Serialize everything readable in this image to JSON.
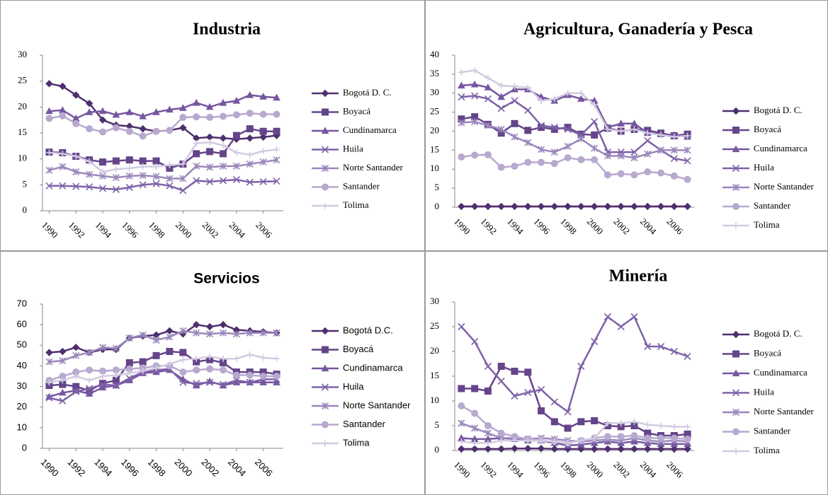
{
  "chart_data": [
    {
      "type": "line",
      "title": "Industria",
      "x": [
        1990,
        1991,
        1992,
        1993,
        1994,
        1995,
        1996,
        1997,
        1998,
        1999,
        2000,
        2001,
        2002,
        2003,
        2004,
        2005,
        2006,
        2007
      ],
      "xlim": [
        1989.5,
        2007.5
      ],
      "xticks": [
        1990,
        1992,
        1994,
        1996,
        1998,
        2000,
        2002,
        2004,
        2006
      ],
      "ylim": [
        0,
        30
      ],
      "yticks": [
        0,
        5,
        10,
        15,
        20,
        25,
        30
      ],
      "legend": "right",
      "series": [
        {
          "name": "Bogotá D. C.",
          "color": "#4f2f6e",
          "marker": "diamond",
          "values": [
            24.5,
            24,
            22.3,
            20.7,
            17.5,
            16.5,
            16.3,
            15.8,
            15.3,
            15.5,
            16,
            14,
            14.2,
            14,
            13.8,
            14,
            14.2,
            14.5
          ]
        },
        {
          "name": "Boyacá",
          "color": "#65448a",
          "marker": "square",
          "values": [
            11.3,
            11.2,
            10.5,
            9.8,
            9.4,
            9.6,
            9.8,
            9.6,
            9.6,
            8.2,
            9,
            11,
            11.4,
            11,
            14.5,
            15.8,
            15.3,
            15.3
          ]
        },
        {
          "name": "Cundinamarca",
          "color": "#7656a0",
          "marker": "triangle",
          "values": [
            19.2,
            19.4,
            17.8,
            19,
            19.2,
            18.5,
            19,
            18.2,
            19,
            19.5,
            19.8,
            20.8,
            20,
            20.8,
            21.2,
            22.3,
            22,
            21.8
          ]
        },
        {
          "name": "Huila",
          "color": "#7e62a8",
          "marker": "x",
          "values": [
            4.8,
            4.8,
            4.7,
            4.6,
            4.3,
            4.1,
            4.5,
            5,
            5.2,
            4.8,
            3.9,
            5.8,
            5.6,
            5.8,
            6,
            5.5,
            5.6,
            5.7
          ]
        },
        {
          "name": "Norte Santander",
          "color": "#9a88bc",
          "marker": "star",
          "values": [
            7.8,
            8.5,
            7.5,
            7,
            6.7,
            6.4,
            6.7,
            6.8,
            6.6,
            6.2,
            6.2,
            8.6,
            8.4,
            8.6,
            8.6,
            9,
            9.4,
            9.8
          ]
        },
        {
          "name": "Santander",
          "color": "#b7a9cf",
          "marker": "circle",
          "values": [
            17.8,
            18.3,
            16.8,
            15.8,
            15.2,
            16,
            15.3,
            14.4,
            15.3,
            15.5,
            18,
            18.1,
            18,
            18.2,
            18.5,
            18.8,
            18.6,
            18.6
          ]
        },
        {
          "name": "Tolima",
          "color": "#d2cbe2",
          "marker": "plus",
          "values": [
            11.2,
            11,
            10.5,
            9.5,
            7.5,
            8,
            8.2,
            8.5,
            8.5,
            8.8,
            9,
            13,
            13.2,
            12.6,
            11.2,
            10.8,
            11.5,
            11.8
          ]
        }
      ]
    },
    {
      "type": "line",
      "title": "Agricultura, Ganadería y Pesca",
      "x": [
        1990,
        1991,
        1992,
        1993,
        1994,
        1995,
        1996,
        1997,
        1998,
        1999,
        2000,
        2001,
        2002,
        2003,
        2004,
        2005,
        2006,
        2007
      ],
      "xlim": [
        1989.5,
        2007.5
      ],
      "xticks": [
        1990,
        1992,
        1994,
        1996,
        1998,
        2000,
        2002,
        2004,
        2006
      ],
      "ylim": [
        0,
        40
      ],
      "yticks": [
        0,
        5,
        10,
        15,
        20,
        25,
        30,
        35,
        40
      ],
      "legend": "right",
      "series": [
        {
          "name": "Bogotá D. C.",
          "color": "#4f2f6e",
          "marker": "diamond",
          "values": [
            0.2,
            0.2,
            0.2,
            0.2,
            0.2,
            0.2,
            0.2,
            0.2,
            0.2,
            0.2,
            0.2,
            0.2,
            0.2,
            0.2,
            0.2,
            0.2,
            0.2,
            0.2
          ]
        },
        {
          "name": "Boyacá",
          "color": "#65448a",
          "marker": "square",
          "values": [
            23.2,
            23.8,
            21.8,
            19.5,
            22,
            20.2,
            21,
            20.5,
            21,
            19.2,
            19,
            20.8,
            20,
            20.5,
            20.2,
            19.5,
            18.8,
            19.2
          ]
        },
        {
          "name": "Cundinamarca",
          "color": "#7656a0",
          "marker": "triangle",
          "values": [
            32,
            32.3,
            31.5,
            29,
            31,
            31,
            29,
            28,
            29.5,
            28.5,
            28,
            21,
            22,
            22,
            19.5,
            19.2,
            19,
            18.5
          ]
        },
        {
          "name": "Huila",
          "color": "#7e62a8",
          "marker": "x",
          "values": [
            29,
            29.3,
            28.5,
            26,
            28,
            25.5,
            21.5,
            21,
            20.5,
            19,
            22.5,
            14.5,
            14.5,
            14.5,
            17.5,
            15,
            12.8,
            12.2
          ]
        },
        {
          "name": "Norte Santander",
          "color": "#9a88bc",
          "marker": "star",
          "values": [
            22.2,
            22.5,
            21.5,
            20.5,
            18.5,
            17,
            15.2,
            14.5,
            16,
            18,
            15.5,
            13.5,
            13.5,
            13,
            14,
            15,
            15,
            15
          ]
        },
        {
          "name": "Santander",
          "color": "#b7a9cf",
          "marker": "circle",
          "values": [
            13.2,
            13.7,
            13.8,
            10.5,
            10.8,
            11.8,
            11.8,
            11.5,
            13,
            12.5,
            12.5,
            8.5,
            8.8,
            8.5,
            9.3,
            9,
            8.2,
            7.3
          ]
        },
        {
          "name": "Tolima",
          "color": "#d2cbe2",
          "marker": "plus",
          "values": [
            35.5,
            36,
            34,
            32,
            31.8,
            31.5,
            28,
            28.5,
            30,
            30,
            27,
            20.5,
            20,
            20.5,
            19.5,
            19,
            18.5,
            18.8
          ]
        }
      ]
    },
    {
      "type": "line",
      "title": "Servicios",
      "x": [
        1990,
        1991,
        1992,
        1993,
        1994,
        1995,
        1996,
        1997,
        1998,
        1999,
        2000,
        2001,
        2002,
        2003,
        2004,
        2005,
        2006,
        2007
      ],
      "xlim": [
        1989.5,
        2007.5
      ],
      "xticks": [
        1990,
        1992,
        1994,
        1996,
        1998,
        2000,
        2002,
        2004,
        2006
      ],
      "ylim": [
        0,
        70
      ],
      "yticks": [
        0,
        10,
        20,
        30,
        40,
        50,
        60,
        70
      ],
      "legend": "right",
      "series": [
        {
          "name": "Bogotá D.C.",
          "color": "#4f2f6e",
          "marker": "diamond",
          "values": [
            46.5,
            47,
            49,
            46.5,
            48,
            48,
            53.5,
            54.5,
            55,
            57,
            55.5,
            60,
            59,
            60,
            57.5,
            57,
            56.5,
            56
          ]
        },
        {
          "name": "Boyacá",
          "color": "#65448a",
          "marker": "square",
          "values": [
            30.5,
            31,
            30,
            28,
            31.5,
            33,
            41.5,
            42,
            45,
            47,
            46.5,
            42,
            43,
            41.5,
            37,
            37,
            37,
            36
          ]
        },
        {
          "name": "Cundinamarca",
          "color": "#7656a0",
          "marker": "triangle",
          "values": [
            25,
            27,
            28,
            26.5,
            29.5,
            30.5,
            33,
            36.5,
            37,
            38,
            33.5,
            30.5,
            32.5,
            30.5,
            32,
            32,
            32,
            32
          ]
        },
        {
          "name": "Huila",
          "color": "#7e62a8",
          "marker": "x",
          "values": [
            24.5,
            23,
            27.5,
            29,
            31,
            30.5,
            34,
            37,
            38,
            38.5,
            32,
            31.5,
            32,
            31,
            33,
            32,
            33.5,
            33.5
          ]
        },
        {
          "name": "Norte Santander",
          "color": "#9a88bc",
          "marker": "star",
          "values": [
            42,
            42.5,
            45,
            46.5,
            49,
            48.5,
            53.5,
            55,
            52.5,
            54,
            57,
            56,
            55.5,
            56,
            55.5,
            56,
            56,
            56
          ]
        },
        {
          "name": "Santander",
          "color": "#b7a9cf",
          "marker": "circle",
          "values": [
            33,
            35,
            37,
            38,
            37.5,
            38,
            38.5,
            39,
            40,
            40,
            37,
            38,
            38.5,
            38,
            35.5,
            35.5,
            35,
            35
          ]
        },
        {
          "name": "Tolima",
          "color": "#d2cbe2",
          "marker": "plus",
          "values": [
            32,
            33,
            35,
            33,
            35,
            35.5,
            36.5,
            37.5,
            39,
            41,
            43,
            43.5,
            44.5,
            43.5,
            43.5,
            45.5,
            44,
            43.5
          ]
        }
      ]
    },
    {
      "type": "line",
      "title": "Minería",
      "x": [
        1990,
        1991,
        1992,
        1993,
        1994,
        1995,
        1996,
        1997,
        1998,
        1999,
        2000,
        2001,
        2002,
        2003,
        2004,
        2005,
        2006,
        2007
      ],
      "xlim": [
        1989.5,
        2007.5
      ],
      "xticks": [
        1990,
        1992,
        1994,
        1996,
        1998,
        2000,
        2002,
        2004,
        2006
      ],
      "ylim": [
        0,
        30
      ],
      "yticks": [
        0,
        5,
        10,
        15,
        20,
        25,
        30
      ],
      "legend": "right",
      "series": [
        {
          "name": "Bogotá D. C.",
          "color": "#4f2f6e",
          "marker": "diamond",
          "values": [
            0.3,
            0.3,
            0.3,
            0.3,
            0.4,
            0.4,
            0.4,
            0.3,
            0.3,
            0.3,
            0.3,
            0.3,
            0.3,
            0.3,
            0.3,
            0.3,
            0.3,
            0.3
          ]
        },
        {
          "name": "Boyacá",
          "color": "#65448a",
          "marker": "square",
          "values": [
            12.5,
            12.5,
            12,
            17,
            16,
            15.8,
            8,
            5.8,
            4.5,
            5.8,
            6,
            5,
            4.8,
            5,
            3.5,
            3,
            3,
            3.3
          ]
        },
        {
          "name": "Cundinamarca",
          "color": "#7656a0",
          "marker": "triangle",
          "values": [
            2.5,
            2.3,
            2.3,
            2.5,
            2.3,
            2,
            2,
            1.5,
            1,
            1.2,
            1.5,
            1.8,
            1.5,
            1.8,
            1.5,
            1.3,
            1.3,
            1.3
          ]
        },
        {
          "name": "Huila",
          "color": "#7e62a8",
          "marker": "x",
          "values": [
            25,
            22,
            17,
            14,
            11,
            11.7,
            12.3,
            9.8,
            7.8,
            17,
            22,
            27,
            25,
            27,
            21,
            21,
            20,
            19
          ]
        },
        {
          "name": "Norte Santander",
          "color": "#9a88bc",
          "marker": "star",
          "values": [
            5.5,
            4.5,
            3.5,
            2.5,
            2.5,
            2.3,
            2.5,
            2.3,
            2,
            1.8,
            2,
            2.2,
            2,
            2.5,
            2,
            1.8,
            2,
            1.8
          ]
        },
        {
          "name": "Santander",
          "color": "#b7a9cf",
          "marker": "circle",
          "values": [
            9,
            7.5,
            5,
            3.5,
            2.8,
            2.3,
            2,
            1.8,
            1.5,
            2,
            2.5,
            2.8,
            2.8,
            3,
            2.5,
            2.5,
            2.5,
            2.3
          ]
        },
        {
          "name": "Tolima",
          "color": "#d2cbe2",
          "marker": "plus",
          "values": [
            1.8,
            1.5,
            1.5,
            2,
            2,
            2,
            2,
            1.8,
            1.5,
            2,
            2.5,
            5.5,
            5.5,
            5.8,
            5.2,
            5,
            4.8,
            4.8
          ]
        }
      ]
    }
  ]
}
